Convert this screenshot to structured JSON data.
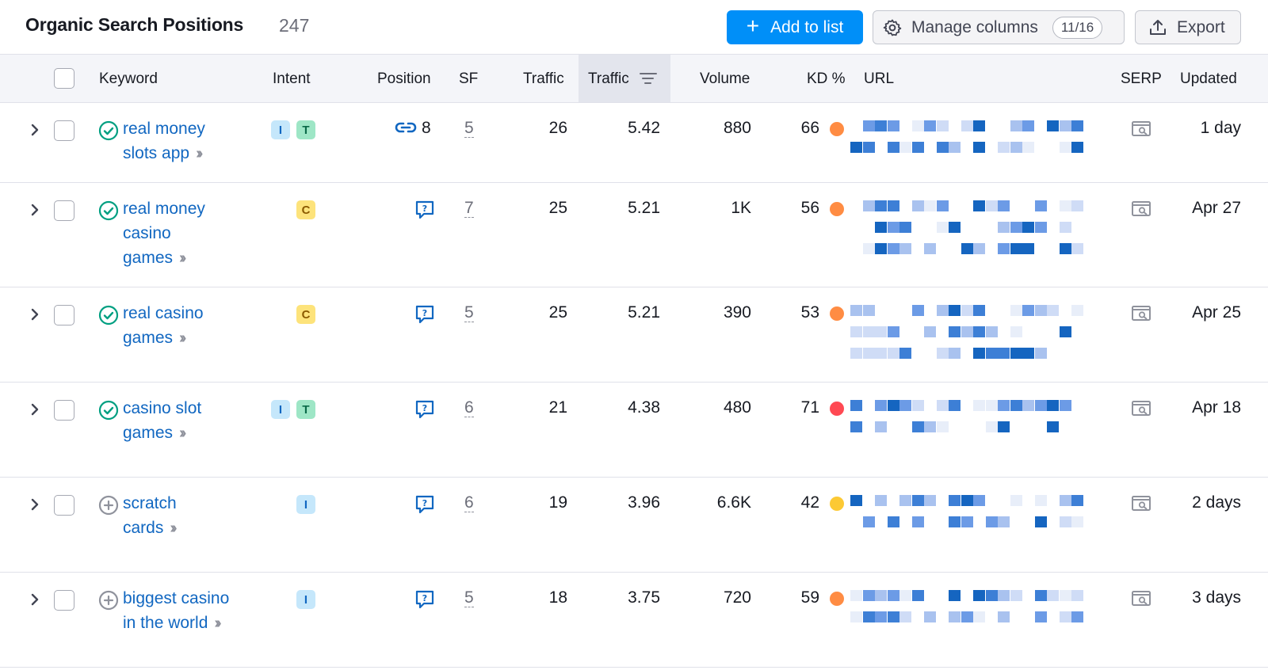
{
  "header": {
    "title": "Organic Search Positions",
    "count": "247",
    "add_button": "Add to list",
    "manage_button": "Manage columns",
    "manage_badge": "11/16",
    "export_button": "Export"
  },
  "columns": {
    "keyword": "Keyword",
    "intent": "Intent",
    "position": "Position",
    "sf": "SF",
    "traffic": "Traffic",
    "traffic_pct": "Traffic",
    "volume": "Volume",
    "kd": "KD %",
    "url": "URL",
    "serp": "SERP",
    "updated": "Updated"
  },
  "colors": {
    "accent": "#008ff8",
    "link": "#1167c1",
    "kd_orange": "#ff8c43",
    "kd_red": "#ff4953",
    "kd_yellow": "#fcc934"
  },
  "rows": [
    {
      "keyword_lines": [
        "real money",
        "slots app"
      ],
      "status_icon": "check-circle-icon",
      "intents": [
        "I",
        "T"
      ],
      "position_icon": "link-icon",
      "position": "8",
      "sf": "5",
      "traffic": "26",
      "traffic_pct": "5.42",
      "volume": "880",
      "kd": "66",
      "kd_color": "#ff8c43",
      "updated": "1 day"
    },
    {
      "keyword_lines": [
        "real money",
        "casino",
        "games"
      ],
      "status_icon": "check-circle-icon",
      "intents": [
        "C"
      ],
      "position_icon": "question-bubble-icon",
      "position": "",
      "sf": "7",
      "traffic": "25",
      "traffic_pct": "5.21",
      "volume": "1K",
      "kd": "56",
      "kd_color": "#ff8c43",
      "updated": "Apr 27"
    },
    {
      "keyword_lines": [
        "real casino",
        "games"
      ],
      "status_icon": "check-circle-icon",
      "intents": [
        "C"
      ],
      "position_icon": "question-bubble-icon",
      "position": "",
      "sf": "5",
      "traffic": "25",
      "traffic_pct": "5.21",
      "volume": "390",
      "kd": "53",
      "kd_color": "#ff8c43",
      "updated": "Apr 25"
    },
    {
      "keyword_lines": [
        "casino slot",
        "games"
      ],
      "status_icon": "check-circle-icon",
      "intents": [
        "I",
        "T"
      ],
      "position_icon": "question-bubble-icon",
      "position": "",
      "sf": "6",
      "traffic": "21",
      "traffic_pct": "4.38",
      "volume": "480",
      "kd": "71",
      "kd_color": "#ff4953",
      "updated": "Apr 18"
    },
    {
      "keyword_lines": [
        "scratch",
        "cards"
      ],
      "status_icon": "plus-circle-icon",
      "intents": [
        "I"
      ],
      "position_icon": "question-bubble-icon",
      "position": "",
      "sf": "6",
      "traffic": "19",
      "traffic_pct": "3.96",
      "volume": "6.6K",
      "kd": "42",
      "kd_color": "#fcc934",
      "updated": "2 days"
    },
    {
      "keyword_lines": [
        "biggest casino",
        "in the world"
      ],
      "status_icon": "plus-circle-icon",
      "intents": [
        "I"
      ],
      "position_icon": "question-bubble-icon",
      "position": "",
      "sf": "5",
      "traffic": "18",
      "traffic_pct": "3.75",
      "volume": "720",
      "kd": "59",
      "kd_color": "#ff8c43",
      "updated": "3 days"
    }
  ]
}
